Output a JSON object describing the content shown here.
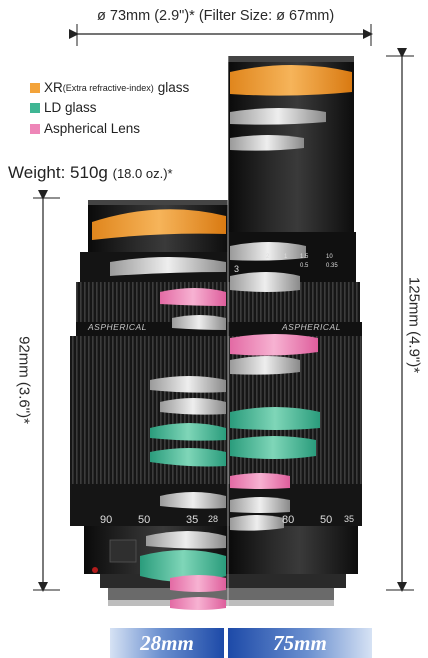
{
  "dimensions": {
    "diameter_text": "ø 73mm (2.9\")* (Filter Size: ø 67mm)",
    "weight_main": "Weight: 510g",
    "weight_small": "(18.0 oz.)*",
    "length_short": "92mm (3.6\")*",
    "length_long": "125mm (4.9\")*"
  },
  "legend": {
    "xr_label": "XR",
    "xr_detail": "(Extra refractive-index)",
    "xr_suffix": "glass",
    "ld_label": "LD glass",
    "asph_label": "Aspherical Lens"
  },
  "barrel": {
    "aspherical_marking": "ASPHERICAL",
    "focal_scale": [
      "3",
      "2",
      "1",
      "1.5",
      "10",
      "0.5",
      "0.35"
    ],
    "zoom_scale_left": [
      "90",
      "50",
      "35",
      "28"
    ],
    "zoom_scale_right": [
      "80",
      "50",
      "35"
    ]
  },
  "focal_lengths": {
    "left": "28mm",
    "right": "75mm"
  },
  "colors": {
    "xr": "#f3a33a",
    "ld": "#3fb694",
    "aspherical": "#ee86b8",
    "arrow": "#222222"
  }
}
